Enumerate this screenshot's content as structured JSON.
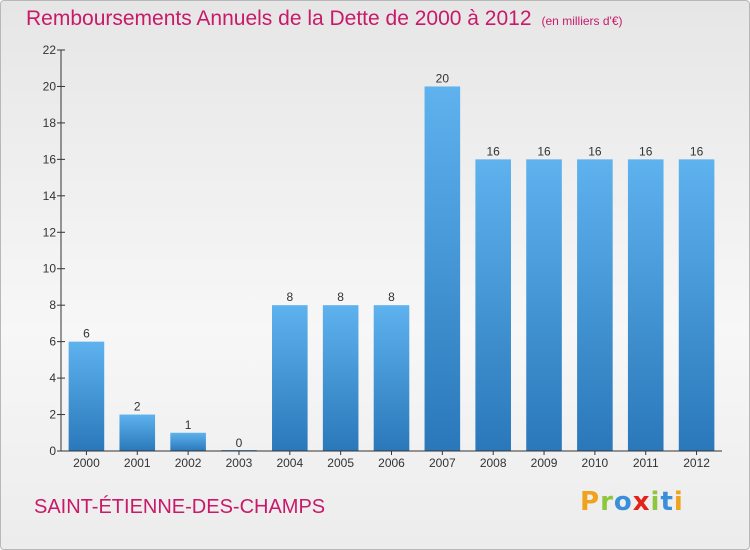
{
  "header": {
    "title": "Remboursements Annuels de la Dette de 2000 à 2012",
    "subtitle": "(en milliers d'€)"
  },
  "commune": "SAINT-ÉTIENNE-DES-CHAMPS",
  "brand": {
    "letters": [
      "P",
      "r",
      "o",
      "x",
      "i",
      "t",
      "i"
    ],
    "colors": [
      "#f0a21c",
      "#8dc63f",
      "#3a8fd9",
      "#e2231a",
      "#8dc63f",
      "#3a8fd9",
      "#f0a21c"
    ]
  },
  "colors": {
    "title": "#c8196a",
    "bar_top": "#5eb2ee",
    "bar_bottom": "#2a78ba",
    "axis": "#333333"
  },
  "chart_data": {
    "type": "bar",
    "categories": [
      "2000",
      "2001",
      "2002",
      "2003",
      "2004",
      "2005",
      "2006",
      "2007",
      "2008",
      "2009",
      "2010",
      "2011",
      "2012"
    ],
    "values": [
      6,
      2,
      1,
      0,
      8,
      8,
      8,
      20,
      16,
      16,
      16,
      16,
      16
    ],
    "data_labels": [
      "6",
      "2",
      "1",
      "0",
      "8",
      "8",
      "8",
      "20",
      "16",
      "16",
      "16",
      "16",
      "16"
    ],
    "yticks": [
      "0",
      "2",
      "4",
      "6",
      "8",
      "10",
      "12",
      "14",
      "16",
      "18",
      "20",
      "22"
    ],
    "ylim": [
      0,
      22
    ],
    "grid": false,
    "legend": "none"
  }
}
